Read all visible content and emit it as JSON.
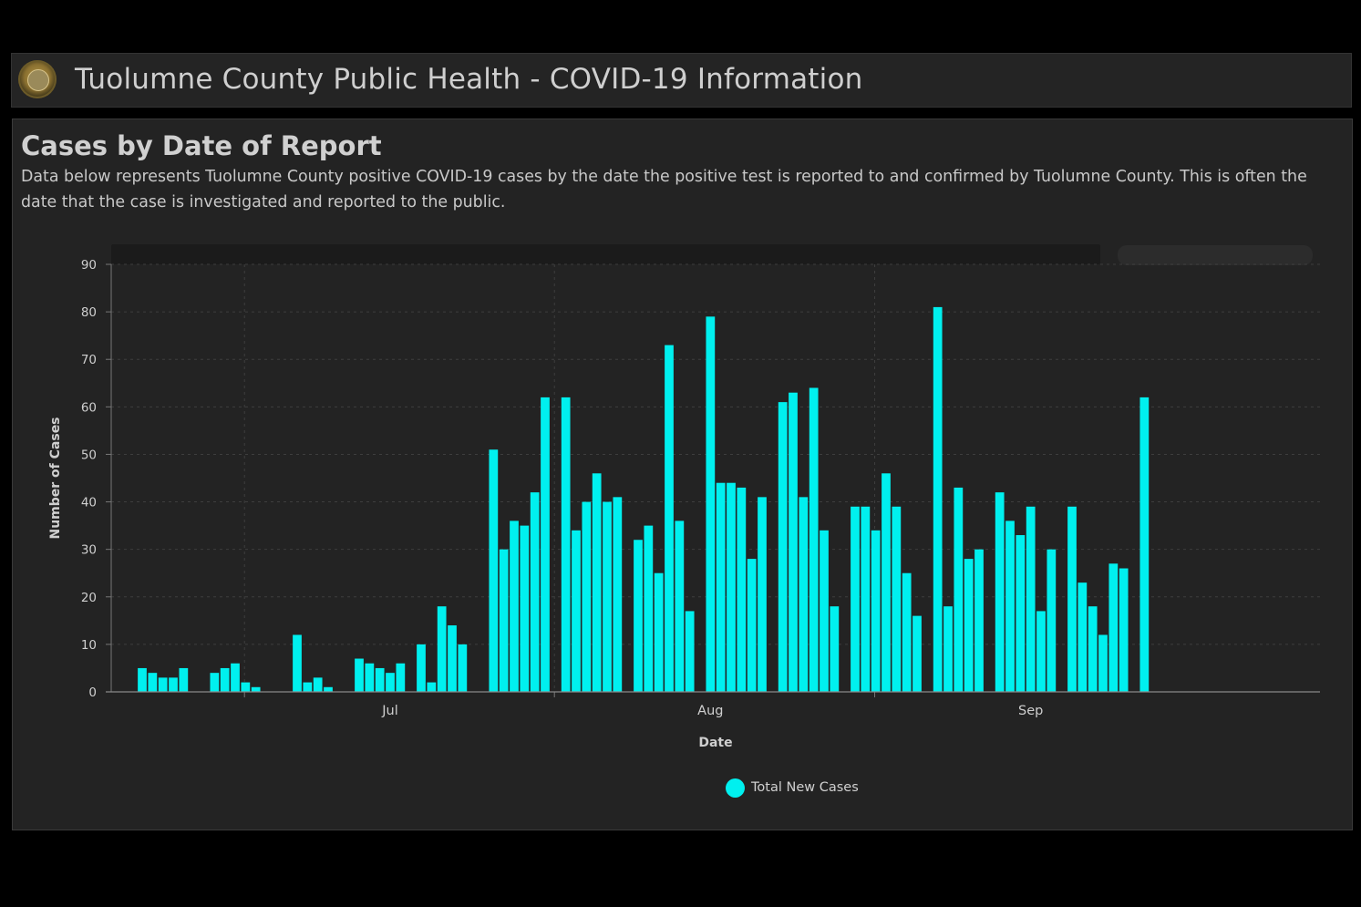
{
  "header": {
    "title": "Tuolumne County Public Health - COVID-19 Information"
  },
  "panel": {
    "title": "Cases by Date of Report",
    "description": "Data below represents Tuolumne County positive COVID-19 cases by the date the positive test is reported to and confirmed by Tuolumne County. This is often the date that the case is investigated and reported to the public."
  },
  "colors": {
    "bar": "#00f0ef",
    "background": "#232323",
    "grid": "#3e3e3e"
  },
  "chart_data": {
    "type": "bar",
    "xlabel": "Date",
    "ylabel": "Number of Cases",
    "ylim": [
      0,
      90
    ],
    "yticks": [
      0,
      10,
      20,
      30,
      40,
      50,
      60,
      70,
      80,
      90
    ],
    "xticks": [
      {
        "date": "2020-07-01",
        "label": "Jul"
      },
      {
        "date": "2020-08-01",
        "label": "Aug"
      },
      {
        "date": "2020-09-01",
        "label": "Sep"
      }
    ],
    "xlim": [
      "2020-06-04",
      "2020-09-29"
    ],
    "grid": true,
    "legend_position": "bottom-center",
    "series": [
      {
        "name": "Total New Cases",
        "color": "#00f0ef",
        "points": [
          [
            "2020-06-07",
            5
          ],
          [
            "2020-06-08",
            4
          ],
          [
            "2020-06-09",
            3
          ],
          [
            "2020-06-10",
            3
          ],
          [
            "2020-06-11",
            5
          ],
          [
            "2020-06-14",
            4
          ],
          [
            "2020-06-15",
            5
          ],
          [
            "2020-06-16",
            6
          ],
          [
            "2020-06-17",
            2
          ],
          [
            "2020-06-18",
            1
          ],
          [
            "2020-06-22",
            12
          ],
          [
            "2020-06-23",
            2
          ],
          [
            "2020-06-24",
            3
          ],
          [
            "2020-06-25",
            1
          ],
          [
            "2020-06-28",
            7
          ],
          [
            "2020-06-29",
            6
          ],
          [
            "2020-06-30",
            5
          ],
          [
            "2020-07-01",
            4
          ],
          [
            "2020-07-02",
            6
          ],
          [
            "2020-07-04",
            10
          ],
          [
            "2020-07-05",
            2
          ],
          [
            "2020-07-06",
            18
          ],
          [
            "2020-07-07",
            14
          ],
          [
            "2020-07-08",
            10
          ],
          [
            "2020-07-11",
            51
          ],
          [
            "2020-07-12",
            30
          ],
          [
            "2020-07-13",
            36
          ],
          [
            "2020-07-14",
            35
          ],
          [
            "2020-07-15",
            42
          ],
          [
            "2020-07-16",
            62
          ],
          [
            "2020-07-18",
            62
          ],
          [
            "2020-07-19",
            34
          ],
          [
            "2020-07-20",
            40
          ],
          [
            "2020-07-21",
            46
          ],
          [
            "2020-07-22",
            40
          ],
          [
            "2020-07-23",
            41
          ],
          [
            "2020-07-25",
            32
          ],
          [
            "2020-07-26",
            35
          ],
          [
            "2020-07-27",
            25
          ],
          [
            "2020-07-28",
            73
          ],
          [
            "2020-07-29",
            36
          ],
          [
            "2020-07-30",
            17
          ],
          [
            "2020-08-01",
            79
          ],
          [
            "2020-08-02",
            44
          ],
          [
            "2020-08-03",
            44
          ],
          [
            "2020-08-04",
            43
          ],
          [
            "2020-08-05",
            28
          ],
          [
            "2020-08-06",
            41
          ],
          [
            "2020-08-08",
            61
          ],
          [
            "2020-08-09",
            63
          ],
          [
            "2020-08-10",
            41
          ],
          [
            "2020-08-11",
            64
          ],
          [
            "2020-08-12",
            34
          ],
          [
            "2020-08-13",
            18
          ],
          [
            "2020-08-15",
            39
          ],
          [
            "2020-08-16",
            39
          ],
          [
            "2020-08-17",
            34
          ],
          [
            "2020-08-18",
            46
          ],
          [
            "2020-08-19",
            39
          ],
          [
            "2020-08-20",
            25
          ],
          [
            "2020-08-21",
            16
          ],
          [
            "2020-08-23",
            81
          ],
          [
            "2020-08-24",
            18
          ],
          [
            "2020-08-25",
            43
          ],
          [
            "2020-08-26",
            28
          ],
          [
            "2020-08-27",
            30
          ],
          [
            "2020-08-29",
            42
          ],
          [
            "2020-08-30",
            36
          ],
          [
            "2020-08-31",
            33
          ],
          [
            "2020-09-01",
            39
          ],
          [
            "2020-09-02",
            17
          ],
          [
            "2020-09-03",
            30
          ],
          [
            "2020-09-05",
            39
          ],
          [
            "2020-09-06",
            23
          ],
          [
            "2020-09-07",
            18
          ],
          [
            "2020-09-08",
            12
          ],
          [
            "2020-09-09",
            27
          ],
          [
            "2020-09-10",
            26
          ],
          [
            "2020-09-12",
            62
          ]
        ]
      }
    ]
  }
}
